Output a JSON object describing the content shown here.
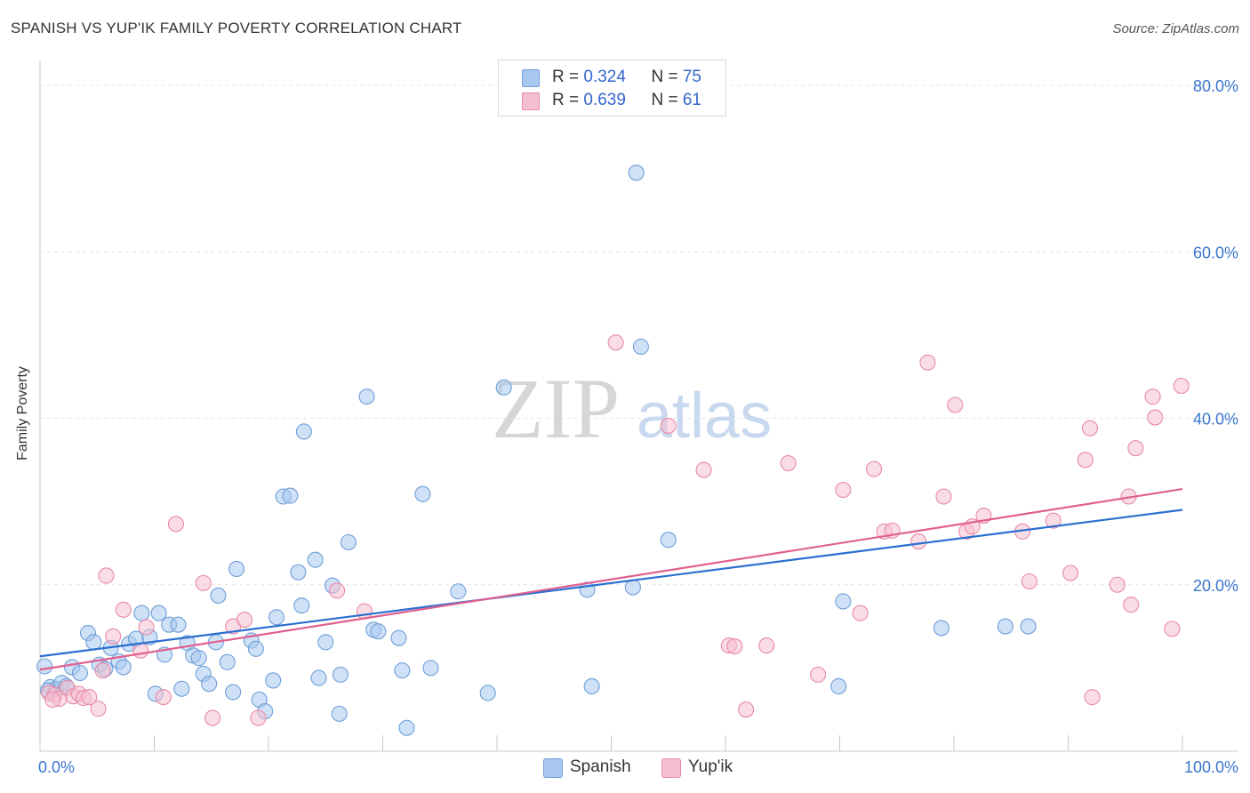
{
  "title": "SPANISH VS YUP'IK FAMILY POVERTY CORRELATION CHART",
  "source": "Source: ZipAtlas.com",
  "watermark": {
    "zip": "ZIP",
    "atlas": "atlas"
  },
  "colors": {
    "spanish_fill": "#a8c8ef",
    "spanish_stroke": "#6f9fd8",
    "spanish_line": "#2a6fd0",
    "yupik_fill": "#f6bfd0",
    "yupik_stroke": "#e88aa8",
    "yupik_line": "#e0608f",
    "tick_label": "#3a76cf",
    "grid": "#e3e3e3"
  },
  "legend_top": {
    "rows": [
      {
        "r_label": "R = ",
        "r_value": "0.324",
        "n_label": "N = ",
        "n_value": "75"
      },
      {
        "r_label": "R = ",
        "r_value": "0.639",
        "n_label": "N = ",
        "n_value": "61"
      }
    ]
  },
  "chart_data": {
    "type": "scatter",
    "title": "SPANISH VS YUP'IK FAMILY POVERTY CORRELATION CHART",
    "xlabel": "",
    "ylabel": "Family Poverty",
    "xlim": [
      0,
      100
    ],
    "ylim": [
      0,
      80
    ],
    "x_tick_labels": [
      "0.0%",
      "100.0%"
    ],
    "y_tick_labels": [
      "20.0%",
      "40.0%",
      "60.0%",
      "80.0%"
    ],
    "y_ticks": [
      20,
      40,
      60,
      80
    ],
    "grid": true,
    "legend_position": "bottom",
    "series": [
      {
        "name": "Spanish",
        "r": 0.324,
        "n": 75,
        "trend": [
          [
            0,
            11.4
          ],
          [
            100,
            29.0
          ]
        ],
        "points": [
          [
            0.4,
            10.2
          ],
          [
            0.9,
            7.7
          ],
          [
            1.4,
            7.5
          ],
          [
            1.9,
            8.2
          ],
          [
            2.3,
            7.8
          ],
          [
            2.8,
            10.1
          ],
          [
            3.5,
            9.4
          ],
          [
            4.2,
            14.2
          ],
          [
            4.7,
            13.1
          ],
          [
            5.2,
            10.4
          ],
          [
            5.7,
            9.9
          ],
          [
            6.2,
            12.4
          ],
          [
            6.9,
            10.8
          ],
          [
            7.3,
            10.1
          ],
          [
            7.8,
            12.9
          ],
          [
            8.4,
            13.5
          ],
          [
            8.9,
            16.6
          ],
          [
            9.6,
            13.7
          ],
          [
            10.1,
            6.9
          ],
          [
            10.4,
            16.6
          ],
          [
            10.9,
            11.6
          ],
          [
            11.3,
            15.2
          ],
          [
            12.1,
            15.2
          ],
          [
            12.4,
            7.5
          ],
          [
            12.9,
            13.0
          ],
          [
            13.4,
            11.5
          ],
          [
            13.9,
            11.2
          ],
          [
            14.3,
            9.3
          ],
          [
            14.8,
            8.1
          ],
          [
            15.6,
            18.7
          ],
          [
            15.4,
            13.1
          ],
          [
            16.4,
            10.7
          ],
          [
            16.9,
            7.1
          ],
          [
            17.2,
            21.9
          ],
          [
            18.5,
            13.3
          ],
          [
            18.9,
            12.3
          ],
          [
            19.2,
            6.2
          ],
          [
            19.7,
            4.8
          ],
          [
            20.4,
            8.5
          ],
          [
            20.7,
            16.1
          ],
          [
            21.3,
            30.6
          ],
          [
            21.9,
            30.7
          ],
          [
            22.6,
            21.5
          ],
          [
            22.9,
            17.5
          ],
          [
            23.1,
            38.4
          ],
          [
            24.1,
            23.0
          ],
          [
            24.4,
            8.8
          ],
          [
            25.0,
            13.1
          ],
          [
            25.6,
            19.9
          ],
          [
            26.3,
            9.2
          ],
          [
            26.2,
            4.5
          ],
          [
            27.0,
            25.1
          ],
          [
            28.6,
            42.6
          ],
          [
            29.2,
            14.6
          ],
          [
            29.6,
            14.4
          ],
          [
            31.4,
            13.6
          ],
          [
            31.7,
            9.7
          ],
          [
            32.1,
            2.8
          ],
          [
            33.5,
            30.9
          ],
          [
            34.2,
            10.0
          ],
          [
            36.6,
            19.2
          ],
          [
            39.2,
            7.0
          ],
          [
            40.6,
            43.7
          ],
          [
            47.9,
            19.4
          ],
          [
            48.3,
            7.8
          ],
          [
            52.2,
            69.5
          ],
          [
            52.6,
            48.6
          ],
          [
            51.9,
            19.7
          ],
          [
            55.0,
            25.4
          ],
          [
            70.3,
            18.0
          ],
          [
            69.9,
            7.8
          ],
          [
            78.9,
            14.8
          ],
          [
            84.5,
            15.0
          ],
          [
            86.5,
            15.0
          ],
          [
            0.7,
            7.3
          ]
        ]
      },
      {
        "name": "Yup'ik",
        "r": 0.639,
        "n": 61,
        "trend": [
          [
            0,
            9.8
          ],
          [
            100,
            31.5
          ]
        ],
        "points": [
          [
            0.8,
            7.0
          ],
          [
            1.3,
            6.8
          ],
          [
            1.7,
            6.3
          ],
          [
            2.4,
            7.6
          ],
          [
            2.9,
            6.6
          ],
          [
            3.4,
            6.9
          ],
          [
            3.8,
            6.4
          ],
          [
            4.3,
            6.5
          ],
          [
            5.1,
            5.1
          ],
          [
            5.5,
            9.7
          ],
          [
            5.8,
            21.1
          ],
          [
            6.4,
            13.8
          ],
          [
            7.3,
            17.0
          ],
          [
            8.8,
            12.1
          ],
          [
            9.3,
            14.9
          ],
          [
            10.8,
            6.5
          ],
          [
            11.9,
            27.3
          ],
          [
            14.3,
            20.2
          ],
          [
            15.1,
            4.0
          ],
          [
            16.9,
            15.0
          ],
          [
            17.9,
            15.8
          ],
          [
            19.1,
            4.0
          ],
          [
            26.0,
            19.3
          ],
          [
            28.4,
            16.8
          ],
          [
            50.4,
            49.1
          ],
          [
            55.0,
            39.1
          ],
          [
            58.1,
            33.8
          ],
          [
            60.3,
            12.7
          ],
          [
            60.8,
            12.6
          ],
          [
            61.8,
            5.0
          ],
          [
            63.6,
            12.7
          ],
          [
            65.5,
            34.6
          ],
          [
            68.1,
            9.2
          ],
          [
            70.3,
            31.4
          ],
          [
            71.8,
            16.6
          ],
          [
            73.0,
            33.9
          ],
          [
            73.9,
            26.4
          ],
          [
            74.6,
            26.5
          ],
          [
            76.9,
            25.2
          ],
          [
            77.7,
            46.7
          ],
          [
            79.1,
            30.6
          ],
          [
            80.1,
            41.6
          ],
          [
            81.1,
            26.4
          ],
          [
            81.6,
            27.0
          ],
          [
            82.6,
            28.3
          ],
          [
            86.0,
            26.4
          ],
          [
            86.6,
            20.4
          ],
          [
            88.7,
            27.7
          ],
          [
            90.2,
            21.4
          ],
          [
            91.5,
            35.0
          ],
          [
            91.9,
            38.8
          ],
          [
            92.1,
            6.5
          ],
          [
            94.3,
            20.0
          ],
          [
            95.3,
            30.6
          ],
          [
            95.5,
            17.6
          ],
          [
            95.9,
            36.4
          ],
          [
            97.4,
            42.6
          ],
          [
            97.6,
            40.1
          ],
          [
            99.1,
            14.7
          ],
          [
            99.9,
            43.9
          ],
          [
            1.1,
            6.2
          ]
        ]
      }
    ]
  }
}
